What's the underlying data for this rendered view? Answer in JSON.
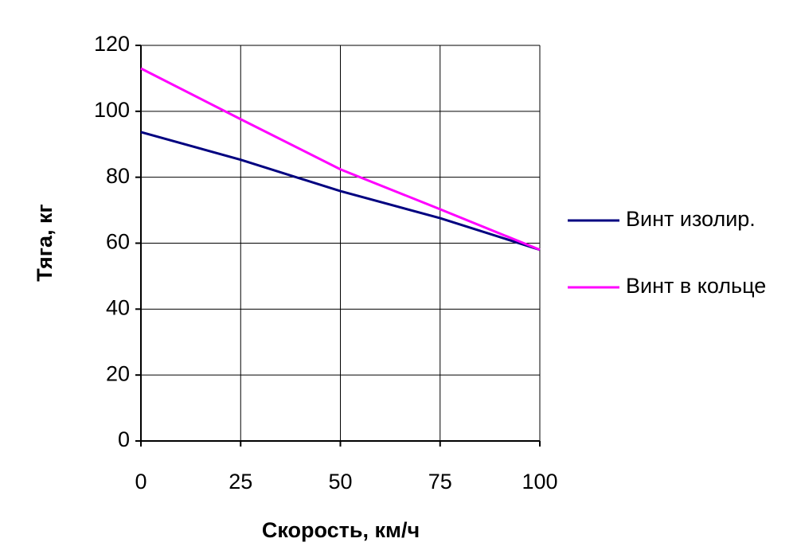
{
  "chart_data": {
    "type": "line",
    "x_label": "Скорость, км/ч",
    "y_label": "Тяга, кг",
    "x": [
      0,
      25,
      50,
      75,
      100
    ],
    "series": [
      {
        "name": "Винт изолир.",
        "color": "#000080",
        "values": [
          93.7,
          85.3,
          75.8,
          67.6,
          58
        ]
      },
      {
        "name": "Винт в кольце",
        "color": "#ff00ff",
        "values": [
          113,
          97.6,
          82.4,
          70.3,
          58
        ]
      }
    ],
    "xlim": [
      0,
      100
    ],
    "xticks": [
      0,
      25,
      50,
      75,
      100
    ],
    "ylim": [
      0,
      120
    ],
    "yticks": [
      0,
      20,
      40,
      60,
      80,
      100,
      120
    ],
    "grid": true,
    "legend": "right"
  }
}
